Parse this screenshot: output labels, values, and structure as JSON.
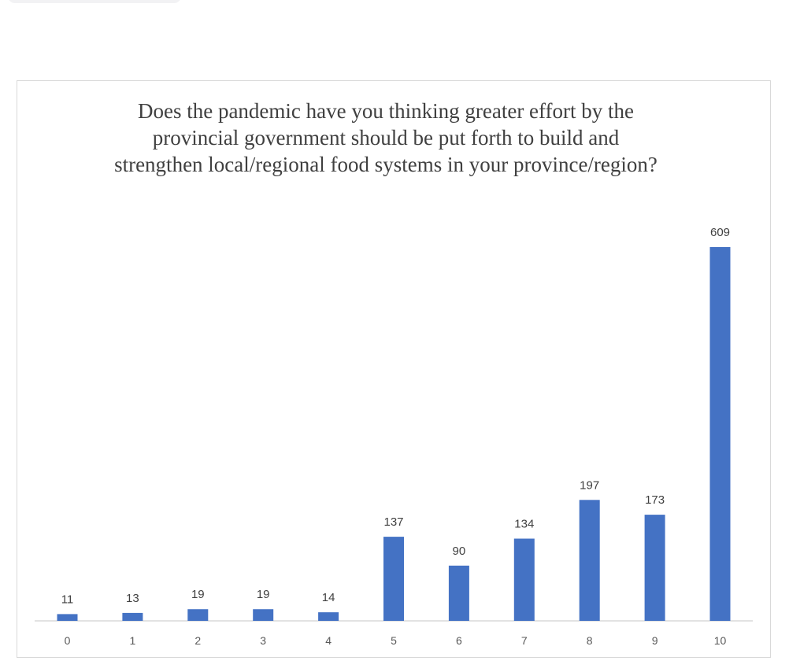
{
  "chart_data": {
    "type": "bar",
    "title_lines": [
      "Does the pandemic have you thinking greater effort by the",
      "provincial government should be put forth to build and",
      "strengthen local/regional food systems in your province/region?"
    ],
    "categories": [
      "0",
      "1",
      "2",
      "3",
      "4",
      "5",
      "6",
      "7",
      "8",
      "9",
      "10"
    ],
    "values": [
      11,
      13,
      19,
      19,
      14,
      137,
      90,
      134,
      197,
      173,
      609
    ],
    "xlabel": "",
    "ylabel": "",
    "ylim": [
      0,
      609
    ],
    "grid": false,
    "legend": "none",
    "bar_color": "#4472C4"
  }
}
